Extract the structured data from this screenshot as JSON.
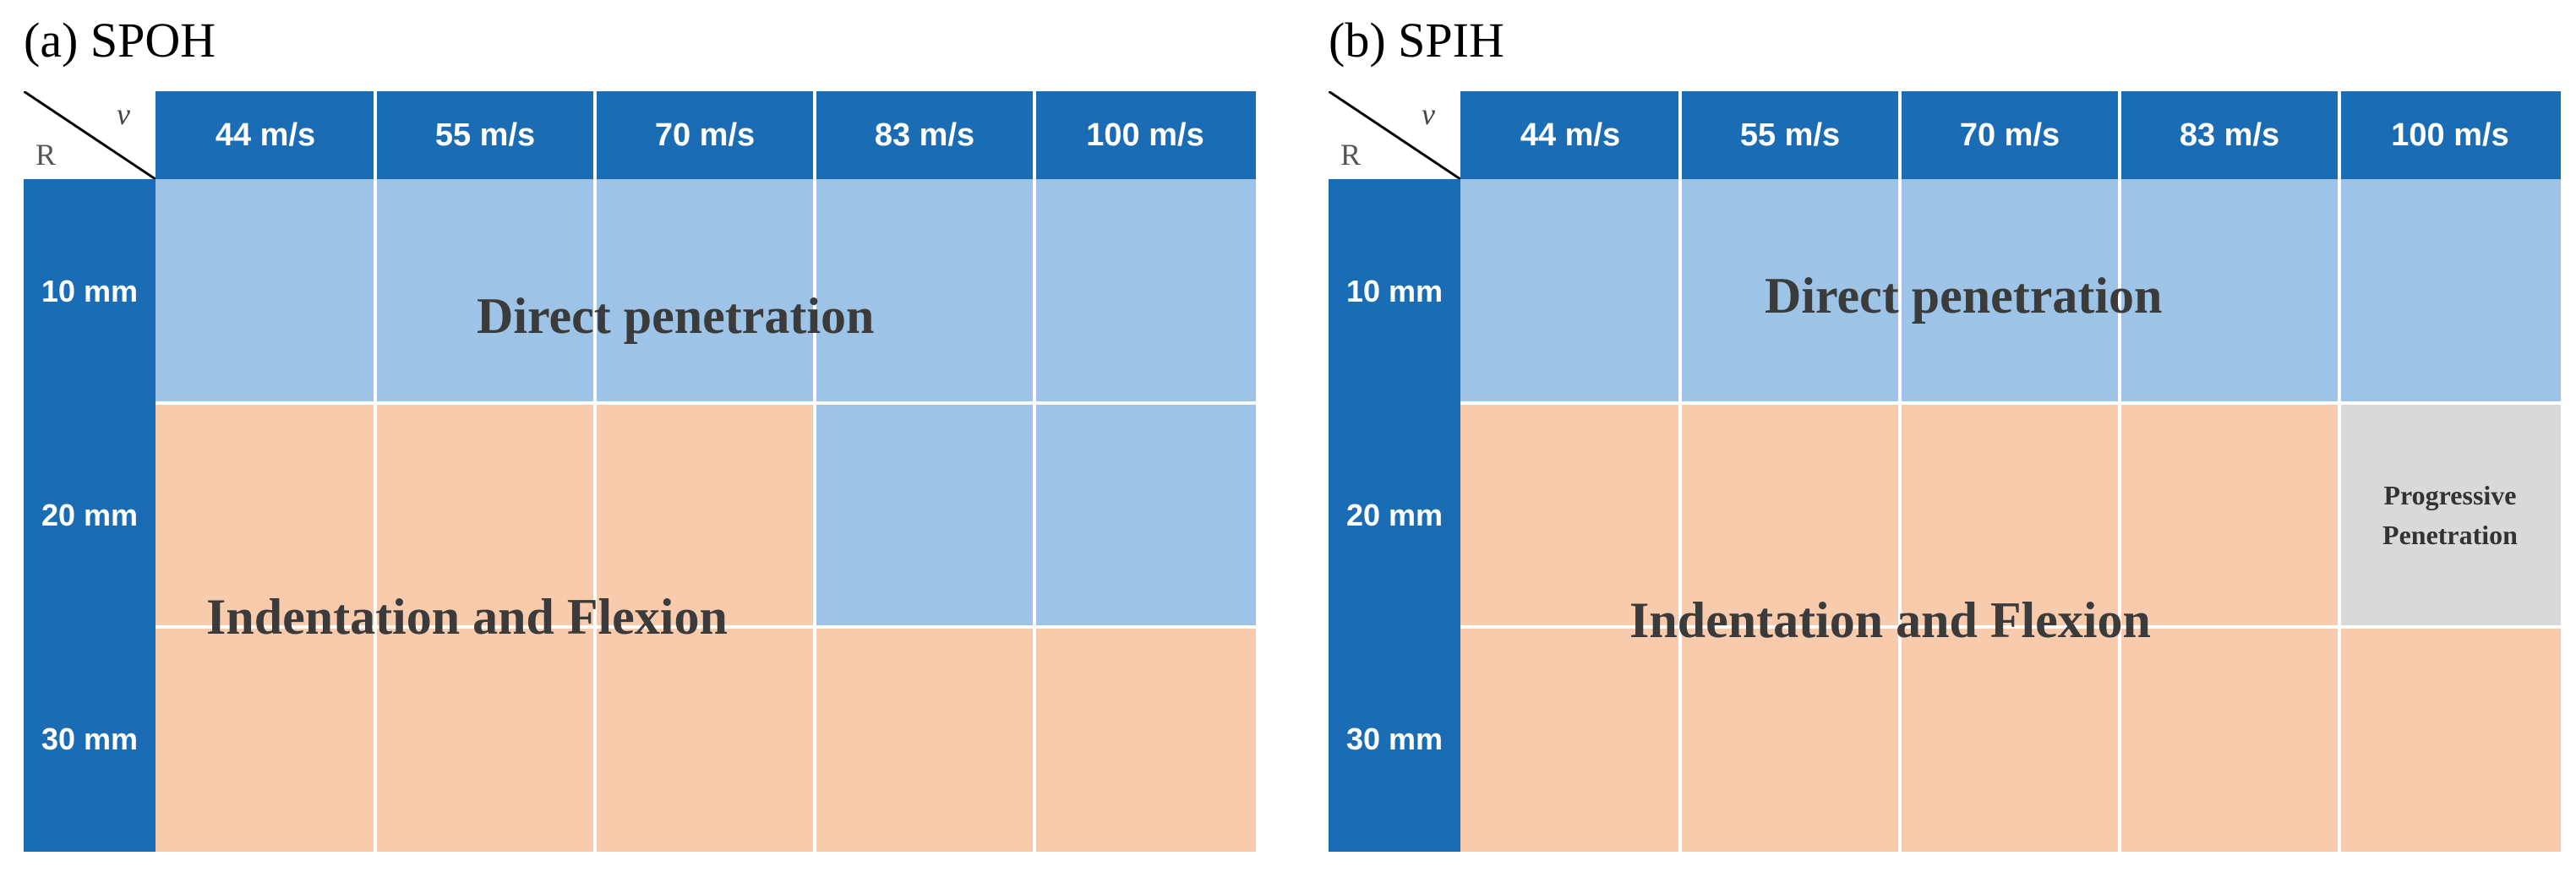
{
  "panels": [
    {
      "title": "(a) SPOH",
      "corner": {
        "velocity_symbol": "v",
        "radius_symbol": "R"
      },
      "columns": [
        "44 m/s",
        "55 m/s",
        "70 m/s",
        "83 m/s",
        "100 m/s"
      ],
      "rows": [
        "10 mm",
        "20 mm",
        "30 mm"
      ],
      "region_labels": {
        "direct": "Direct penetration",
        "indentation": "Indentation and Flexion"
      },
      "cell_classes": [
        [
          "direct",
          "direct",
          "direct",
          "direct",
          "direct"
        ],
        [
          "indentation",
          "indentation",
          "indentation",
          "direct",
          "direct"
        ],
        [
          "indentation",
          "indentation",
          "indentation",
          "indentation",
          "indentation"
        ]
      ]
    },
    {
      "title": "(b) SPIH",
      "corner": {
        "velocity_symbol": "v",
        "radius_symbol": "R"
      },
      "columns": [
        "44 m/s",
        "55 m/s",
        "70 m/s",
        "83 m/s",
        "100 m/s"
      ],
      "rows": [
        "10 mm",
        "20 mm",
        "30 mm"
      ],
      "region_labels": {
        "direct": "Direct penetration",
        "indentation": "Indentation and Flexion",
        "progressive": "Progressive Penetration"
      },
      "progressive_lines": [
        "Progressive",
        "Penetration"
      ],
      "cell_classes": [
        [
          "direct",
          "direct",
          "direct",
          "direct",
          "direct"
        ],
        [
          "indentation",
          "indentation",
          "indentation",
          "indentation",
          "progressive"
        ],
        [
          "indentation",
          "indentation",
          "indentation",
          "indentation",
          "indentation"
        ]
      ]
    }
  ],
  "colors": {
    "header_blue": "#1a6db5",
    "direct_blue": "#9dc3e6",
    "indentation_orange": "#f8cbad",
    "progressive_gray": "#d9d9d9"
  }
}
